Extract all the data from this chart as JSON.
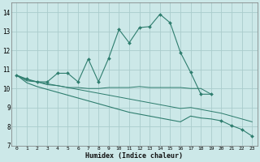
{
  "xlabel": "Humidex (Indice chaleur)",
  "x": [
    0,
    1,
    2,
    3,
    4,
    5,
    6,
    7,
    8,
    9,
    10,
    11,
    12,
    13,
    14,
    15,
    16,
    17,
    18,
    19,
    20,
    21,
    22,
    23
  ],
  "line1_x": [
    0,
    1,
    2,
    3,
    4,
    5,
    6,
    7,
    8,
    9,
    10,
    11,
    12,
    13,
    14,
    15,
    16,
    17,
    18,
    19
  ],
  "line1_y": [
    10.7,
    10.5,
    10.35,
    10.35,
    10.8,
    10.8,
    10.35,
    11.55,
    10.35,
    11.6,
    13.1,
    12.4,
    13.2,
    13.25,
    13.9,
    13.45,
    11.9,
    10.85,
    9.7,
    9.7
  ],
  "line2_x": [
    0,
    1,
    2,
    3,
    4,
    5,
    6,
    7,
    8,
    9,
    10,
    11,
    12,
    13,
    14,
    15,
    16,
    17,
    18,
    19
  ],
  "line2_y": [
    10.7,
    10.4,
    10.35,
    10.2,
    10.15,
    10.05,
    10.05,
    10.0,
    10.0,
    10.05,
    10.05,
    10.05,
    10.1,
    10.05,
    10.05,
    10.05,
    10.05,
    10.0,
    10.0,
    9.7
  ],
  "line3_x": [
    0,
    1,
    2,
    3,
    4,
    5,
    6,
    7,
    8,
    9,
    10,
    11,
    12,
    13,
    14,
    15,
    16,
    17,
    18,
    19,
    20,
    21,
    22,
    23
  ],
  "line3_y": [
    10.7,
    10.3,
    10.1,
    9.95,
    9.8,
    9.65,
    9.5,
    9.35,
    9.2,
    9.05,
    8.9,
    8.75,
    8.65,
    8.55,
    8.45,
    8.35,
    8.25,
    8.55,
    8.45,
    8.4,
    8.3,
    8.05,
    7.85,
    7.5
  ],
  "line4_x": [
    0,
    1,
    2,
    3,
    4,
    5,
    6,
    7,
    8,
    9,
    10,
    11,
    12,
    13,
    14,
    15,
    16,
    17,
    18,
    19,
    20,
    21,
    22,
    23
  ],
  "line4_y": [
    10.7,
    10.45,
    10.35,
    10.25,
    10.15,
    10.05,
    9.95,
    9.85,
    9.75,
    9.65,
    9.55,
    9.45,
    9.35,
    9.25,
    9.15,
    9.05,
    8.95,
    9.0,
    8.9,
    8.8,
    8.7,
    8.55,
    8.4,
    8.25
  ],
  "line_color": "#2e7d6e",
  "bg_color": "#cce8e8",
  "grid_color": "#aacccc",
  "ylim": [
    7,
    14.5
  ],
  "xlim": [
    -0.5,
    23.5
  ],
  "yticks": [
    7,
    8,
    9,
    10,
    11,
    12,
    13,
    14
  ],
  "xticks": [
    0,
    1,
    2,
    3,
    4,
    5,
    6,
    7,
    8,
    9,
    10,
    11,
    12,
    13,
    14,
    15,
    16,
    17,
    18,
    19,
    20,
    21,
    22,
    23
  ],
  "marker": "D",
  "marker_size": 2.0,
  "linewidth": 0.8
}
